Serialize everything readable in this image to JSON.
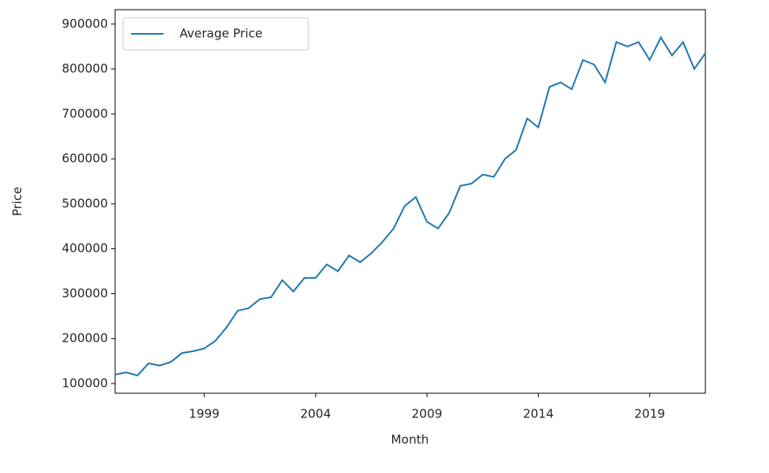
{
  "chart_data": {
    "type": "line",
    "x_label": "Month",
    "y_label": "Price",
    "x": [
      1995.0,
      1995.5,
      1996.0,
      1996.5,
      1997.0,
      1997.5,
      1998.0,
      1998.5,
      1999.0,
      1999.5,
      2000.0,
      2000.5,
      2001.0,
      2001.5,
      2002.0,
      2002.5,
      2003.0,
      2003.5,
      2004.0,
      2004.5,
      2005.0,
      2005.5,
      2006.0,
      2006.5,
      2007.0,
      2007.5,
      2008.0,
      2008.5,
      2009.0,
      2009.5,
      2010.0,
      2010.5,
      2011.0,
      2011.5,
      2012.0,
      2012.5,
      2013.0,
      2013.5,
      2014.0,
      2014.5,
      2015.0,
      2015.5,
      2016.0,
      2016.5,
      2017.0,
      2017.5,
      2018.0,
      2018.5,
      2019.0,
      2019.5,
      2020.0,
      2020.5,
      2021.0,
      2021.5
    ],
    "series": [
      {
        "name": "Average Price",
        "color": "#1f77b4",
        "values": [
          120000,
          125000,
          118000,
          145000,
          140000,
          148000,
          168000,
          172000,
          178000,
          195000,
          225000,
          262000,
          268000,
          288000,
          292000,
          330000,
          305000,
          335000,
          335000,
          365000,
          350000,
          385000,
          370000,
          390000,
          415000,
          445000,
          495000,
          515000,
          460000,
          445000,
          480000,
          540000,
          545000,
          565000,
          560000,
          600000,
          620000,
          690000,
          670000,
          760000,
          770000,
          755000,
          820000,
          810000,
          770000,
          860000,
          850000,
          860000,
          820000,
          870000,
          830000,
          860000,
          800000,
          835000
        ]
      }
    ],
    "xlim": [
      1995.0,
      2021.5
    ],
    "xticks": [
      1999,
      2004,
      2009,
      2014,
      2019
    ],
    "ylim": [
      78500,
      932000
    ],
    "yticks": [
      100000,
      200000,
      300000,
      400000,
      500000,
      600000,
      700000,
      800000,
      900000
    ],
    "legend": "upper left",
    "grid": false
  }
}
